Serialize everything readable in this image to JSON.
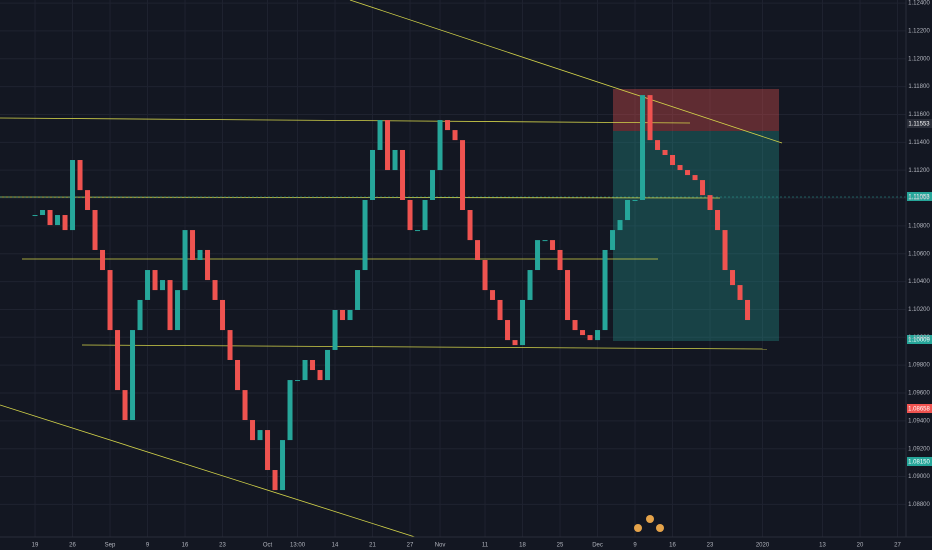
{
  "chart_data": {
    "type": "candlestick",
    "x": [
      0,
      1,
      2,
      3,
      4,
      5,
      6,
      7,
      8,
      9,
      10,
      11,
      12,
      13,
      14,
      15,
      16,
      17,
      18,
      19,
      20,
      21,
      22,
      23,
      24,
      25,
      26,
      27,
      28,
      29,
      30,
      31,
      32,
      33,
      34,
      35,
      36,
      37,
      38,
      39,
      40,
      41,
      42,
      43,
      44,
      45,
      46,
      47,
      48,
      49,
      50,
      51,
      52,
      53,
      54,
      55,
      56,
      57,
      58,
      59,
      60,
      61,
      62,
      63,
      64,
      65,
      66,
      67,
      68,
      69,
      70,
      71,
      72,
      73,
      74,
      75,
      76,
      77,
      78,
      79,
      80,
      81,
      82,
      83,
      84,
      85,
      86,
      87,
      88,
      89,
      90,
      91,
      92,
      93,
      94,
      95
    ],
    "values": [
      1.10878,
      1.10914,
      1.10806,
      1.10878,
      1.1077,
      1.11273,
      1.11057,
      1.10914,
      1.10627,
      1.10483,
      1.10052,
      1.09621,
      1.09406,
      1.10052,
      1.10268,
      1.10483,
      1.10339,
      1.10411,
      1.10052,
      1.10339,
      1.1077,
      1.10555,
      1.10627,
      1.10411,
      1.10268,
      1.10052,
      1.09837,
      1.09621,
      1.09406,
      1.09262,
      1.09334,
      1.09047,
      1.08903,
      1.09262,
      1.09693,
      1.09693,
      1.09837,
      1.09765,
      1.09693,
      1.09909,
      1.10196,
      1.10124,
      1.10196,
      1.10483,
      1.10986,
      1.11345,
      1.1156,
      1.11201,
      1.11345,
      1.10986,
      1.1077,
      1.1077,
      1.10986,
      1.11201,
      1.1156,
      1.11488,
      1.11416,
      1.10914,
      1.10698,
      1.10555,
      1.10339,
      1.10268,
      1.10124,
      1.0998,
      1.09944,
      1.10268,
      1.10483,
      1.10698,
      1.10698,
      1.10627,
      1.10483,
      1.10124,
      1.10052,
      1.10016,
      1.0998,
      1.10052,
      1.10627,
      1.1077,
      1.10842,
      1.10986,
      1.10986,
      1.11739,
      1.11416,
      1.11345,
      1.11309,
      1.11237,
      1.11201,
      1.11165,
      1.11129,
      1.11021,
      1.10914,
      1.1077,
      1.10483,
      1.10375,
      1.10268,
      1.10124
    ],
    "up_color": "#26a69a",
    "down_color": "#ef5350",
    "xlim": [
      -4.67,
      116.13
    ],
    "ylim": [
      1.08566,
      1.12422
    ],
    "xticks": [
      {
        "value": 0,
        "label": "19"
      },
      {
        "value": 5,
        "label": "26"
      },
      {
        "value": 10,
        "label": "Sep"
      },
      {
        "value": 15,
        "label": "9"
      },
      {
        "value": 20,
        "label": "16"
      },
      {
        "value": 25,
        "label": "23"
      },
      {
        "value": 31,
        "label": "Oct"
      },
      {
        "value": 35,
        "label": "13:00"
      },
      {
        "value": 40,
        "label": "14"
      },
      {
        "value": 45,
        "label": "21"
      },
      {
        "value": 50,
        "label": "27"
      },
      {
        "value": 54,
        "label": "Nov"
      },
      {
        "value": 60,
        "label": "11"
      },
      {
        "value": 65,
        "label": "18"
      },
      {
        "value": 70,
        "label": "25"
      },
      {
        "value": 75,
        "label": "Dec"
      },
      {
        "value": 80,
        "label": "9"
      },
      {
        "value": 85,
        "label": "16"
      },
      {
        "value": 90,
        "label": "23"
      },
      {
        "value": 97,
        "label": "2020"
      },
      {
        "value": 105,
        "label": "13"
      },
      {
        "value": 110,
        "label": "20"
      },
      {
        "value": 115,
        "label": "27"
      }
    ],
    "yticks": [
      {
        "value": 1.088,
        "label": "1.08800"
      },
      {
        "value": 1.09,
        "label": "1.09000"
      },
      {
        "value": 1.092,
        "label": "1.09200"
      },
      {
        "value": 1.094,
        "label": "1.09400"
      },
      {
        "value": 1.096,
        "label": "1.09600"
      },
      {
        "value": 1.098,
        "label": "1.09800"
      },
      {
        "value": 1.1,
        "label": "1.10000"
      },
      {
        "value": 1.102,
        "label": "1.10200"
      },
      {
        "value": 1.104,
        "label": "1.10400"
      },
      {
        "value": 1.106,
        "label": "1.10600"
      },
      {
        "value": 1.108,
        "label": "1.10800"
      },
      {
        "value": 1.11,
        "label": "1.11000"
      },
      {
        "value": 1.112,
        "label": "1.11200"
      },
      {
        "value": 1.114,
        "label": "1.11400"
      },
      {
        "value": 1.116,
        "label": "1.11600"
      },
      {
        "value": 1.118,
        "label": "1.11800"
      },
      {
        "value": 1.12,
        "label": "1.12000"
      },
      {
        "value": 1.122,
        "label": "1.12200"
      },
      {
        "value": 1.124,
        "label": "1.12400"
      }
    ],
    "grid": true,
    "price_badges": [
      "1.11553",
      "1.11053",
      "1.10009",
      "1.08658",
      "1.08150"
    ]
  }
}
